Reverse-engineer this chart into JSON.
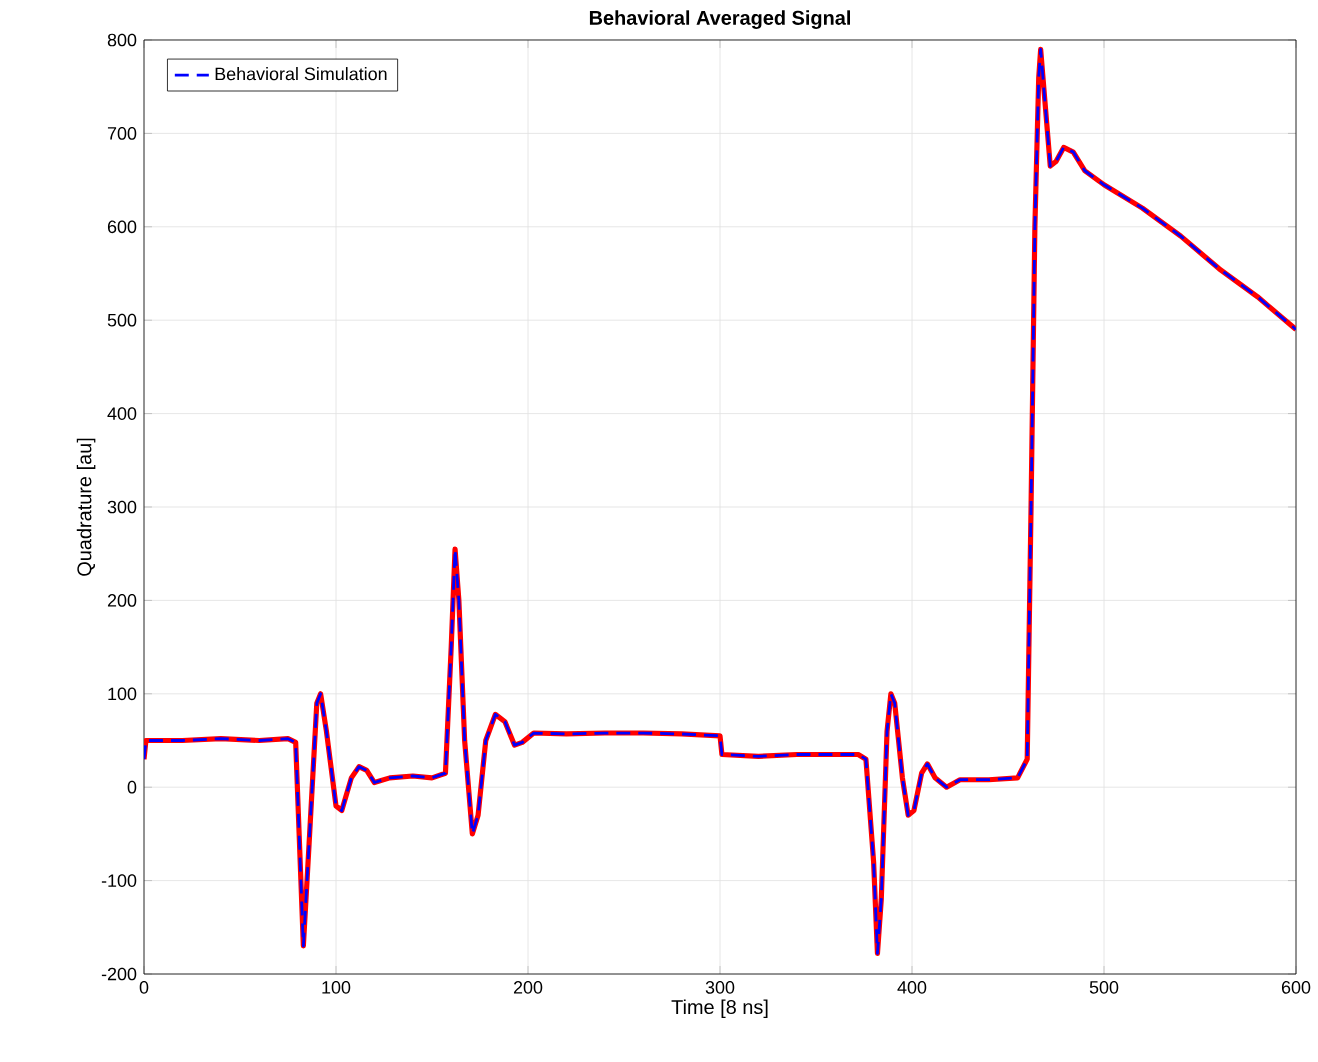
{
  "chart_data": {
    "type": "line",
    "title": "Behavioral Averaged Signal",
    "xlabel": "Time [8 ns]",
    "ylabel": "Quadrature [au]",
    "x": [
      0,
      1,
      20,
      40,
      60,
      75,
      79,
      83,
      86,
      90,
      92,
      95,
      100,
      103,
      108,
      112,
      116,
      120,
      128,
      140,
      150,
      157,
      160,
      162,
      164,
      167,
      171,
      174,
      178,
      183,
      188,
      193,
      197,
      203,
      220,
      240,
      260,
      280,
      300,
      301,
      320,
      340,
      360,
      372,
      376,
      380,
      382,
      384,
      387,
      389,
      391,
      395,
      398,
      401,
      405,
      408,
      412,
      418,
      425,
      440,
      455,
      460,
      462,
      464,
      466,
      467,
      469,
      472,
      475,
      479,
      484,
      490,
      500,
      520,
      540,
      560,
      580,
      600
    ],
    "series": [
      {
        "color": "#ff0000",
        "line_style": "solid",
        "values": [
          30,
          50,
          50,
          52,
          50,
          52,
          48,
          -170,
          -60,
          90,
          100,
          60,
          -20,
          -25,
          10,
          22,
          18,
          5,
          10,
          12,
          10,
          15,
          150,
          255,
          200,
          50,
          -50,
          -30,
          50,
          78,
          70,
          45,
          48,
          58,
          57,
          58,
          58,
          57,
          55,
          35,
          33,
          35,
          35,
          35,
          30,
          -80,
          -178,
          -120,
          60,
          100,
          90,
          10,
          -30,
          -25,
          15,
          25,
          10,
          0,
          8,
          8,
          10,
          30,
          300,
          600,
          760,
          790,
          740,
          665,
          670,
          685,
          680,
          660,
          645,
          620,
          590,
          555,
          525,
          490
        ]
      },
      {
        "name": "Behavioral Simulation",
        "color": "#0000ff",
        "line_style": "dashed",
        "values": [
          30,
          50,
          50,
          52,
          50,
          52,
          48,
          -170,
          -60,
          90,
          100,
          60,
          -20,
          -25,
          10,
          22,
          18,
          5,
          10,
          12,
          10,
          15,
          150,
          255,
          200,
          50,
          -50,
          -30,
          50,
          78,
          70,
          45,
          48,
          58,
          57,
          58,
          58,
          57,
          55,
          35,
          33,
          35,
          35,
          35,
          30,
          -80,
          -178,
          -120,
          60,
          100,
          90,
          10,
          -30,
          -25,
          15,
          25,
          10,
          0,
          8,
          8,
          10,
          30,
          300,
          600,
          760,
          790,
          740,
          665,
          670,
          685,
          680,
          660,
          645,
          620,
          590,
          555,
          525,
          490
        ]
      }
    ],
    "xlim": [
      0,
      600
    ],
    "ylim": [
      -200,
      800
    ],
    "xticks": [
      0,
      100,
      200,
      300,
      400,
      500,
      600
    ],
    "yticks": [
      -200,
      -100,
      0,
      100,
      200,
      300,
      400,
      500,
      600,
      700,
      800
    ],
    "grid": true,
    "legend": "top left",
    "marker": "none"
  }
}
